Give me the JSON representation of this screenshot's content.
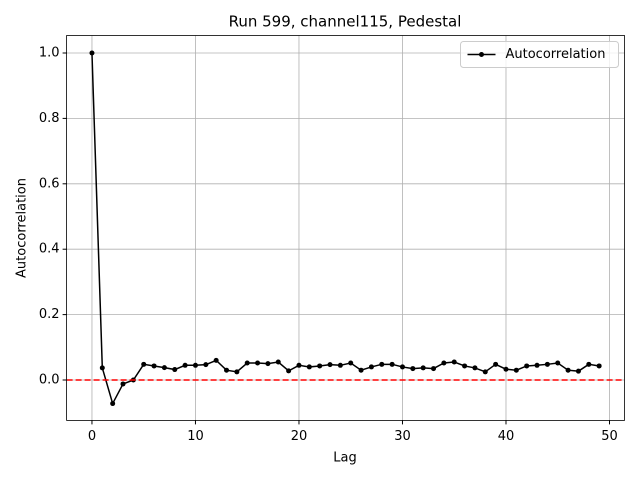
{
  "chart_data": {
    "type": "line",
    "title": "Run 599, channel115, Pedestal",
    "xlabel": "Lag",
    "ylabel": "Autocorrelation",
    "x": [
      0,
      1,
      2,
      3,
      4,
      5,
      6,
      7,
      8,
      9,
      10,
      11,
      12,
      13,
      14,
      15,
      16,
      17,
      18,
      19,
      20,
      21,
      22,
      23,
      24,
      25,
      26,
      27,
      28,
      29,
      30,
      31,
      32,
      33,
      34,
      35,
      36,
      37,
      38,
      39,
      40,
      41,
      42,
      43,
      44,
      45,
      46,
      47,
      48,
      49
    ],
    "series": [
      {
        "name": "Autocorrelation",
        "color": "#000000",
        "values": [
          1.0,
          0.037,
          -0.072,
          -0.012,
          0.0,
          0.048,
          0.043,
          0.038,
          0.032,
          0.045,
          0.045,
          0.047,
          0.06,
          0.03,
          0.025,
          0.052,
          0.052,
          0.05,
          0.055,
          0.028,
          0.045,
          0.04,
          0.043,
          0.047,
          0.045,
          0.052,
          0.03,
          0.04,
          0.048,
          0.048,
          0.04,
          0.035,
          0.037,
          0.035,
          0.052,
          0.055,
          0.043,
          0.037,
          0.025,
          0.048,
          0.033,
          0.03,
          0.043,
          0.045,
          0.048,
          0.052,
          0.03,
          0.027,
          0.048,
          0.043
        ]
      }
    ],
    "hline": {
      "value": 0,
      "color": "#ff0000"
    },
    "xlim": [
      -2.45,
      51.45
    ],
    "xticks": [
      0,
      10,
      20,
      30,
      40,
      50
    ],
    "ylim": [
      -0.1235,
      1.0535
    ],
    "yticks": [
      {
        "value": 0,
        "label": "0.0"
      },
      0.2,
      0.4,
      0.6,
      0.8,
      {
        "value": 1,
        "label": "1.0"
      }
    ],
    "grid": true,
    "legend": "upper-right"
  }
}
